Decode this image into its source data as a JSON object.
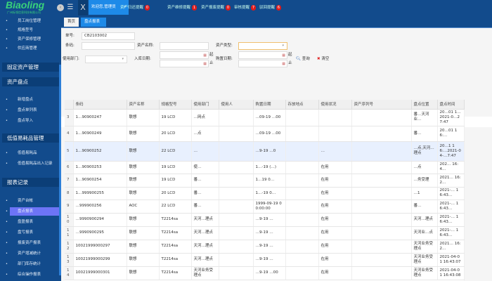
{
  "header": {
    "logo": "Biaoling",
    "logo_sub": "广州标领信息科技有限公司",
    "welcome": "欢迎您,管理员",
    "notifications": [
      {
        "label": "资产归还提醒",
        "count": "0"
      },
      {
        "label": "资产维修提醒",
        "count": "1"
      },
      {
        "label": "资产报废提醒",
        "count": "0"
      },
      {
        "label": "审核提醒",
        "count": "7"
      },
      {
        "label": "驳回提醒",
        "count": "6"
      }
    ]
  },
  "sidebar": {
    "items_top": [
      "员工岗位管理",
      "规格型号",
      "资产保修管理",
      "供应商管理"
    ],
    "sections": [
      {
        "title": "固定资产管理",
        "items": []
      },
      {
        "title": "资产盘点",
        "items": [
          "新增盘点",
          "盘点单列表",
          "盘点导入"
        ]
      },
      {
        "title": "低值易耗品管理",
        "items": [
          "低值易耗品",
          "低值易耗品出入记录"
        ]
      },
      {
        "title": "报表记录",
        "items": [
          "资产台帐",
          "盘点报表",
          "盘盈报表",
          "盘亏报表",
          "报废资产报表",
          "资产增减统计",
          "部门库存统计",
          "综合操作报表"
        ]
      }
    ],
    "active": "盘点报表"
  },
  "tabs": [
    {
      "label": "首页"
    },
    {
      "label": "盘点报表"
    }
  ],
  "form": {
    "order_no_label": "单号:",
    "order_no": "CB2103002",
    "barcode_label": "条码:",
    "barcode": "",
    "asset_name_label": "资产名称:",
    "asset_name": "",
    "asset_type_label": "资产类型:",
    "asset_type": "",
    "dept_label": "使用部门:",
    "dept": "",
    "instock_label": "入库日期:",
    "purchase_label": "购置日期:",
    "from": "起",
    "to": "止",
    "search": "查询",
    "clear": "清空"
  },
  "toolbar": {
    "export": "导出"
  },
  "table": {
    "columns": [
      "条码",
      "资产名称",
      "规格型号",
      "使用部门",
      "使用人",
      "购置日期",
      "存放地点",
      "使用状况",
      "资产序列号",
      "盘点位置",
      "盘点时间"
    ],
    "rows": [
      {
        "n": "3",
        "code": "1…90900247",
        "name": "联想",
        "model": "19 LCD",
        "dept": "…网点",
        "user": "",
        "date": "…09-19 …00",
        "loc": "",
        "status": "",
        "serial": "",
        "pos": "番…天河业…",
        "time": "20…01 1…2021-0…27:47",
        "h": 24
      },
      {
        "n": "4",
        "code": "1…90900249",
        "name": "联想",
        "model": "20 LCD",
        "dept": "…点",
        "user": "",
        "date": "…09-19 …00",
        "loc": "",
        "status": "",
        "serial": "",
        "pos": "番…",
        "time": "20…01 16:…",
        "h": 22
      },
      {
        "n": "5",
        "code": "1…90900252",
        "name": "联想",
        "model": "22 LCD",
        "dept": "…",
        "user": "",
        "date": "…9-19 …0",
        "loc": "",
        "status": "…",
        "serial": "",
        "pos": "…点,天河…理点",
        "time": "20…1 16:…2021-04-…7:47",
        "h": 28,
        "selected": true
      },
      {
        "n": "6",
        "code": "1…90900253",
        "name": "联想",
        "model": "19 LCD",
        "dept": "使…",
        "user": "",
        "date": "1…-19 (…)",
        "loc": "",
        "status": "在用",
        "serial": "",
        "pos": "…点",
        "time": "202… 16:4…",
        "h": 18
      },
      {
        "n": "7",
        "code": "1…90900254",
        "name": "联想",
        "model": "19 LCD",
        "dept": "番…",
        "user": "",
        "date": "1…19 0…",
        "loc": "",
        "status": "在用",
        "serial": "",
        "pos": "…务受理",
        "time": "2021… 16:2…",
        "h": 19
      },
      {
        "n": "8",
        "code": "1…999900255",
        "name": "联想",
        "model": "20 LCD",
        "dept": "番…",
        "user": "",
        "date": "1…-19 0…",
        "loc": "",
        "status": "在用",
        "serial": "",
        "pos": "…1",
        "time": "2021-… 16:43…",
        "h": 18
      },
      {
        "n": "9",
        "code": "…999900256",
        "name": "AOC",
        "model": "22 LCD",
        "dept": "番…",
        "user": "",
        "date": "1999-09-19 00:00:00",
        "loc": "",
        "status": "在用",
        "serial": "",
        "pos": "番…",
        "time": "2021-… 16:43…",
        "h": 19
      },
      {
        "n": "10",
        "code": "…9990900294",
        "name": "联想",
        "model": "T2214sa",
        "dept": "天河…理点",
        "user": "",
        "date": "…9-19 …",
        "loc": "",
        "status": "在用",
        "serial": "",
        "pos": "天河…理点",
        "time": "2021-… 16:43…",
        "h": 19
      },
      {
        "n": "11",
        "code": "…9990900295",
        "name": "联想",
        "model": "T2214sa",
        "dept": "天河…理点",
        "user": "",
        "date": "…9-19 …",
        "loc": "",
        "status": "在用",
        "serial": "",
        "pos": "天河业…点",
        "time": "2021-… 16:43…",
        "h": 19
      },
      {
        "n": "12",
        "code": "10021999000297",
        "name": "联想",
        "model": "T2214sa",
        "dept": "天河…理点",
        "user": "",
        "date": "…9-19 …",
        "loc": "",
        "status": "在用",
        "serial": "",
        "pos": "天河业务受理点",
        "time": "2021… 16:2…",
        "h": 19
      },
      {
        "n": "13",
        "code": "10021999000299",
        "name": "联想",
        "model": "T2214sa",
        "dept": "天河…理点",
        "user": "",
        "date": "…9-19 …",
        "loc": "",
        "status": "在用",
        "serial": "",
        "pos": "天河业务受理点",
        "time": "2021-04-01 16:43:07",
        "h": 19
      },
      {
        "n": "14",
        "code": "10021999000301",
        "name": "联想",
        "model": "T2214sa",
        "dept": "天河业务受理点",
        "user": "",
        "date": "…9-19 …00",
        "loc": "",
        "status": "在用",
        "serial": "",
        "pos": "天河业务受理点",
        "time": "2021-04-01 16:43:08",
        "h": 19
      }
    ]
  },
  "colors": {
    "header": "#124b8c",
    "accent": "#1e8ae8",
    "active_menu": "#6d74f6",
    "badge": "#e01a1a",
    "logo": "#39d27a"
  }
}
